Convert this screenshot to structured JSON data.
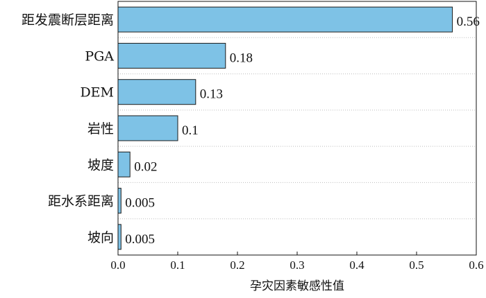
{
  "chart_data": {
    "type": "bar",
    "orientation": "horizontal",
    "categories": [
      "距发震断层距离",
      "PGA",
      "DEM",
      "岩性",
      "坡度",
      "距水系距离",
      "坡向"
    ],
    "values": [
      0.56,
      0.18,
      0.13,
      0.1,
      0.02,
      0.005,
      0.005
    ],
    "value_labels": [
      "0.56",
      "0.18",
      "0.13",
      "0.1",
      "0.02",
      "0.005",
      "0.005"
    ],
    "xlabel": "孕灾因素敏感性值",
    "xlim": [
      0,
      0.6
    ],
    "xticks": [
      "0.0",
      "0.1",
      "0.2",
      "0.3",
      "0.4",
      "0.5",
      "0.6"
    ],
    "grid": "horizontal dotted lines between bars",
    "bar_color": "#7ec2e6",
    "bar_edge_color": "#1a1a1a"
  }
}
